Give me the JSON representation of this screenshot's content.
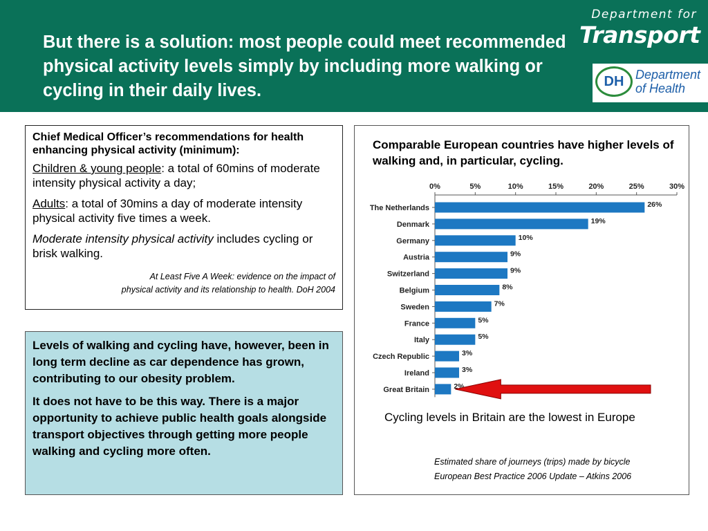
{
  "header": {
    "title": "But there is a solution: most people could meet recommended physical activity levels simply by including more walking or cycling in their daily lives.",
    "dft_top": "Department for",
    "dft_main": "Transport",
    "dh_logo": "DH",
    "dh_line1": "Department",
    "dh_line2": "of Health",
    "bg_color": "#0a7158"
  },
  "cmo_box": {
    "heading": "Chief Medical Officer’s recommendations for health enhancing physical activity (minimum):",
    "children_label": "Children & young people",
    "children_text": ": a total of 60mins of moderate intensity physical activity a day;",
    "adults_label": "Adults",
    "adults_text": ": a total of 30mins a day of moderate intensity physical activity five times a week.",
    "moderate_label": "Moderate intensity physical activity",
    "moderate_text": " includes cycling or brisk walking.",
    "source_line1": "At Least Five A Week: evidence on the impact of",
    "source_line2": "physical activity and its relationship to health.  DoH 2004"
  },
  "decline_box": {
    "para1": "Levels of walking and cycling have, however, been in long term decline as car dependence has grown, contributing to our obesity problem.",
    "para2": "It does not have to be this way. There is a major opportunity to achieve public health goals alongside transport objectives through getting more people walking and cycling more often.",
    "bg_color": "#b6dee4"
  },
  "chart_panel": {
    "title": "Comparable European countries have higher levels of walking and, in particular, cycling.",
    "note": "Cycling levels in Britain are the lowest in Europe",
    "source_line1": "Estimated share of journeys (trips) made by bicycle",
    "source_line2": "European Best Practice 2006 Update – Atkins 2006"
  },
  "chart_data": {
    "type": "bar",
    "orientation": "horizontal",
    "categories": [
      "The Netherlands",
      "Denmark",
      "Germany",
      "Austria",
      "Switzerland",
      "Belgium",
      "Sweden",
      "France",
      "Italy",
      "Czech Republic",
      "Ireland",
      "Great Britain"
    ],
    "values": [
      26,
      19,
      10,
      9,
      9,
      8,
      7,
      5,
      5,
      3,
      3,
      2
    ],
    "value_labels": [
      "26%",
      "19%",
      "10%",
      "9%",
      "9%",
      "8%",
      "7%",
      "5%",
      "5%",
      "3%",
      "3%",
      "2%"
    ],
    "x_ticks": [
      0,
      5,
      10,
      15,
      20,
      25,
      30
    ],
    "x_tick_labels": [
      "0%",
      "5%",
      "10%",
      "15%",
      "20%",
      "25%",
      "30%"
    ],
    "xlim": [
      0,
      30
    ],
    "axis_position": "top",
    "bar_color": "#1d78c2",
    "highlight_arrow_color": "#e01010",
    "highlighted_category": "Great Britain"
  }
}
